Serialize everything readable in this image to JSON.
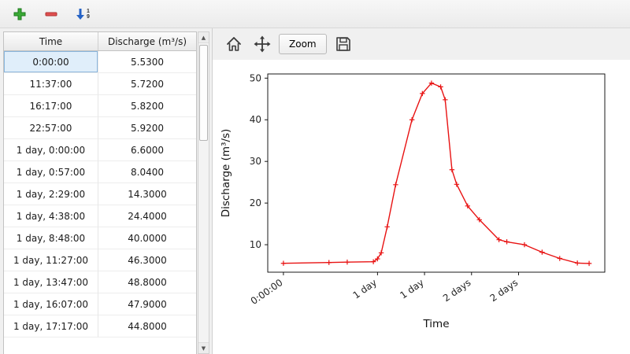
{
  "toolbar": {
    "sort_top": "1",
    "sort_bottom": "9"
  },
  "table": {
    "headers": [
      "Time",
      "Discharge (m³/s)"
    ],
    "selected": {
      "row": 0,
      "col": 0
    },
    "rows": [
      [
        "0:00:00",
        "5.5300"
      ],
      [
        "11:37:00",
        "5.7200"
      ],
      [
        "16:17:00",
        "5.8200"
      ],
      [
        "22:57:00",
        "5.9200"
      ],
      [
        "1 day, 0:00:00",
        "6.6000"
      ],
      [
        "1 day, 0:57:00",
        "8.0400"
      ],
      [
        "1 day, 2:29:00",
        "14.3000"
      ],
      [
        "1 day, 4:38:00",
        "24.4000"
      ],
      [
        "1 day, 8:48:00",
        "40.0000"
      ],
      [
        "1 day, 11:27:00",
        "46.3000"
      ],
      [
        "1 day, 13:47:00",
        "48.8000"
      ],
      [
        "1 day, 16:07:00",
        "47.9000"
      ],
      [
        "1 day, 17:17:00",
        "44.8000"
      ]
    ]
  },
  "plot_toolbar": {
    "zoom_label": "Zoom"
  },
  "colors": {
    "line": "#e81212",
    "selection": "#e0eefa",
    "add_icon_green": "#3aaa35",
    "remove_icon_red": "#e05050",
    "sort_arrow_blue": "#2663c6"
  },
  "chart_data": {
    "type": "line",
    "title": "",
    "xlabel": "Time",
    "ylabel": "Discharge (m³/s)",
    "x_unit": "hours",
    "xlim": [
      -4,
      82
    ],
    "ylim": [
      3.4,
      51
    ],
    "x_ticks": [
      0,
      24,
      36,
      48,
      60
    ],
    "x_tick_labels": [
      "0:00:00",
      "1 day",
      "1 day",
      "2 days",
      "2 days"
    ],
    "y_ticks": [
      10,
      20,
      30,
      40,
      50
    ],
    "grid": false,
    "legend": "none",
    "series": [
      {
        "name": "Discharge",
        "color": "#e81212",
        "marker": "plus",
        "points": [
          [
            0,
            5.53
          ],
          [
            11.62,
            5.72
          ],
          [
            16.28,
            5.82
          ],
          [
            22.95,
            5.92
          ],
          [
            24.0,
            6.6
          ],
          [
            24.95,
            8.04
          ],
          [
            26.48,
            14.3
          ],
          [
            28.63,
            24.4
          ],
          [
            32.8,
            40.0
          ],
          [
            35.45,
            46.3
          ],
          [
            37.78,
            48.8
          ],
          [
            40.12,
            47.9
          ],
          [
            41.28,
            44.8
          ],
          [
            43.0,
            28.0
          ],
          [
            44.2,
            24.5
          ],
          [
            47.0,
            19.3
          ],
          [
            50.0,
            16.0
          ],
          [
            55.0,
            11.2
          ],
          [
            57.0,
            10.7
          ],
          [
            61.5,
            10.0
          ],
          [
            66.0,
            8.2
          ],
          [
            70.5,
            6.7
          ],
          [
            75.0,
            5.6
          ],
          [
            78.0,
            5.5
          ]
        ]
      }
    ]
  }
}
